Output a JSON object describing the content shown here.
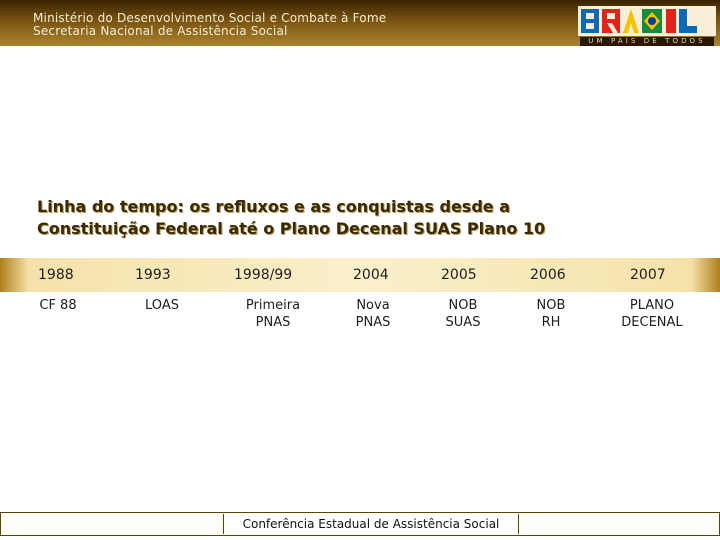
{
  "header": {
    "ministry": "Ministério do Desenvolvimento Social e Combate à Fome",
    "secretariat": "Secretaria Nacional de Assistência Social"
  },
  "logo": {
    "wordmark": "BRASIL",
    "tagline": "UM PAÍS DE TODOS"
  },
  "title": {
    "line1": "Linha do tempo: os refluxos e as conquistas desde a",
    "line2": "Constituição Federal até o Plano Decenal SUAS Plano 10"
  },
  "timeline": [
    {
      "year": "1988",
      "event": [
        "CF 88"
      ]
    },
    {
      "year": "1993",
      "event": [
        "LOAS"
      ]
    },
    {
      "year": "1998/99",
      "event": [
        "Primeira",
        "PNAS"
      ]
    },
    {
      "year": "2004",
      "event": [
        "Nova",
        "PNAS"
      ]
    },
    {
      "year": "2005",
      "event": [
        "NOB",
        "SUAS"
      ]
    },
    {
      "year": "2006",
      "event": [
        "NOB",
        "RH"
      ]
    },
    {
      "year": "2007",
      "event": [
        "PLANO",
        "DECENAL"
      ]
    }
  ],
  "footer": {
    "label": "Conferência Estadual de Assistência Social"
  },
  "colors": {
    "header_dark": "#3b2300",
    "header_light": "#a9822f",
    "title_text": "#3a2a00",
    "timeline_bar": "#fbf0cc"
  }
}
